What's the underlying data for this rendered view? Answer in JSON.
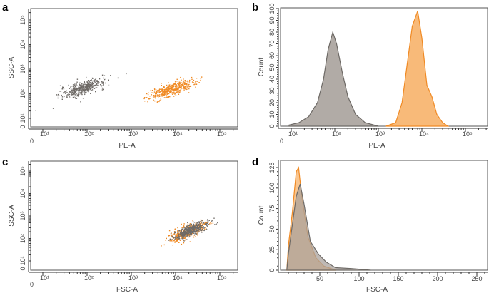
{
  "colors": {
    "gray": "#6e6a66",
    "gray_fill": "#a9a29c",
    "orange": "#f08a24",
    "orange_fill": "#f7b26a",
    "frame": "#555555"
  },
  "chart_data": [
    {
      "panel": "a",
      "type": "scatter",
      "xlabel": "PE-A",
      "ylabel": "SSC-A",
      "xscale": "biexponential-log",
      "yscale": "biexponential-log",
      "xticks": [
        "0",
        "10¹",
        "10²",
        "10³",
        "10⁴",
        "10⁵"
      ],
      "yticks": [
        "0",
        "10¹",
        "10²",
        "10³",
        "10⁴",
        "10⁵"
      ],
      "series": [
        {
          "color": "gray",
          "x_log_center": 1.9,
          "y_log_center": 2.25,
          "x_log_spread": 0.25,
          "y_log_spread": 0.13,
          "slope": 0.55,
          "n": 450
        },
        {
          "color": "orange",
          "x_log_center": 3.9,
          "y_log_center": 2.2,
          "x_log_spread": 0.25,
          "y_log_spread": 0.13,
          "slope": 0.55,
          "n": 450
        }
      ]
    },
    {
      "panel": "b",
      "type": "area",
      "xlabel": "PE-A",
      "ylabel": "Count",
      "xscale": "biexponential-log",
      "ylim": [
        0,
        100
      ],
      "xticks": [
        "0",
        "10¹",
        "10²",
        "10³",
        "10⁴",
        "10⁵"
      ],
      "yticks": [
        "0",
        "10",
        "20",
        "30",
        "40",
        "50",
        "60",
        "70",
        "80",
        "90",
        "100"
      ],
      "series": [
        {
          "color": "gray",
          "points": [
            [
              8,
              1
            ],
            [
              15,
              3
            ],
            [
              25,
              8
            ],
            [
              40,
              20
            ],
            [
              55,
              40
            ],
            [
              70,
              65
            ],
            [
              90,
              80
            ],
            [
              110,
              70
            ],
            [
              150,
              45
            ],
            [
              200,
              25
            ],
            [
              300,
              10
            ],
            [
              500,
              3
            ],
            [
              1000,
              0
            ]
          ]
        },
        {
          "color": "orange",
          "points": [
            [
              1500,
              0
            ],
            [
              2500,
              3
            ],
            [
              3500,
              20
            ],
            [
              4500,
              50
            ],
            [
              6000,
              85
            ],
            [
              8000,
              98
            ],
            [
              10000,
              75
            ],
            [
              13000,
              35
            ],
            [
              17000,
              25
            ],
            [
              22000,
              10
            ],
            [
              30000,
              3
            ],
            [
              40000,
              0
            ]
          ]
        }
      ]
    },
    {
      "panel": "c",
      "type": "scatter",
      "xlabel": "FSC-A",
      "ylabel": "SSC-A",
      "xscale": "biexponential-log",
      "yscale": "biexponential-log",
      "xticks": [
        "0",
        "10¹",
        "10²",
        "10³",
        "10⁴",
        "10⁵"
      ],
      "yticks": [
        "0",
        "10¹",
        "10²",
        "10³",
        "10⁴",
        "10⁵"
      ],
      "series": [
        {
          "color": "orange",
          "x_log_center": 4.25,
          "y_log_center": 2.3,
          "x_log_spread": 0.2,
          "y_log_spread": 0.15,
          "slope": 0.75,
          "n": 400
        },
        {
          "color": "gray",
          "x_log_center": 4.35,
          "y_log_center": 2.4,
          "x_log_spread": 0.2,
          "y_log_spread": 0.12,
          "slope": 0.75,
          "n": 450
        }
      ]
    },
    {
      "panel": "d",
      "type": "area",
      "xlabel": "FSC-A",
      "ylabel": "Count",
      "xlim": [
        0,
        262
      ],
      "ylim": [
        0,
        125
      ],
      "xticks": [
        "50",
        "100",
        "150",
        "200",
        "250"
      ],
      "yticks": [
        "0",
        "25",
        "50",
        "75",
        "100",
        "125"
      ],
      "series": [
        {
          "color": "orange",
          "points": [
            [
              8,
              0
            ],
            [
              10,
              30
            ],
            [
              15,
              70
            ],
            [
              20,
              120
            ],
            [
              23,
              125
            ],
            [
              27,
              90
            ],
            [
              35,
              40
            ],
            [
              45,
              15
            ],
            [
              55,
              5
            ],
            [
              70,
              0
            ]
          ]
        },
        {
          "color": "gray",
          "points": [
            [
              8,
              0
            ],
            [
              10,
              20
            ],
            [
              15,
              55
            ],
            [
              20,
              90
            ],
            [
              25,
              105
            ],
            [
              30,
              80
            ],
            [
              38,
              35
            ],
            [
              48,
              20
            ],
            [
              58,
              10
            ],
            [
              70,
              3
            ],
            [
              90,
              2
            ],
            [
              115,
              0
            ]
          ]
        }
      ]
    }
  ]
}
